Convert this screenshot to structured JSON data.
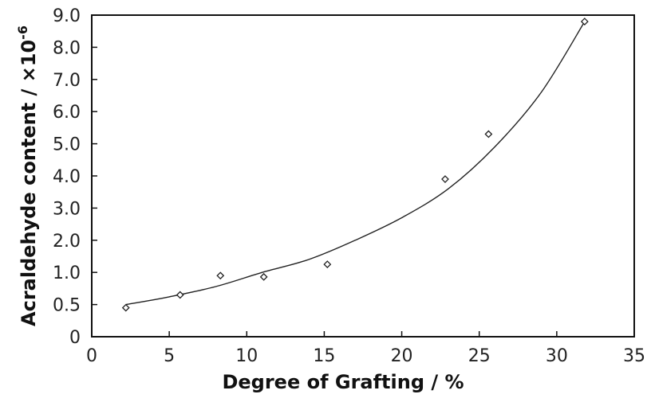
{
  "chart_data": {
    "type": "scatter",
    "title": "",
    "xlabel": "Degree of Grafting / %",
    "ylabel": "Acraldehyde content / ×10",
    "ylabel_superscript": "-6",
    "xlim": [
      0,
      35
    ],
    "x_ticks": [
      0,
      5,
      10,
      15,
      20,
      25,
      30,
      35
    ],
    "x_tick_labels": [
      "0",
      "5",
      "10",
      "15",
      "20",
      "25",
      "30",
      "35"
    ],
    "y_ticks": [
      0,
      0.5,
      1.0,
      2.0,
      3.0,
      4.0,
      5.0,
      6.0,
      7.0,
      8.0,
      9.0
    ],
    "y_tick_labels": [
      "0",
      "0.5",
      "1.0",
      "2.0",
      "3.0",
      "4.0",
      "5.0",
      "6.0",
      "7.0",
      "8.0",
      "9.0"
    ],
    "grid": false,
    "legend": "none",
    "series": [
      {
        "marker": "diamond-open",
        "x": [
          2.2,
          5.7,
          8.3,
          11.1,
          15.2,
          22.8,
          25.6,
          31.8
        ],
        "y": [
          0.45,
          0.65,
          0.95,
          0.93,
          1.25,
          3.9,
          5.3,
          8.8
        ]
      }
    ],
    "fit_curve": {
      "type": "exponential trend",
      "x": [
        2.2,
        5,
        8,
        11,
        14,
        17,
        20,
        23,
        26,
        29,
        31.8
      ],
      "y": [
        0.5,
        0.62,
        0.78,
        1.0,
        1.4,
        2.0,
        2.7,
        3.6,
        4.9,
        6.6,
        8.8
      ]
    },
    "colors": {
      "marks": "#222222",
      "background": "#ffffff"
    }
  }
}
